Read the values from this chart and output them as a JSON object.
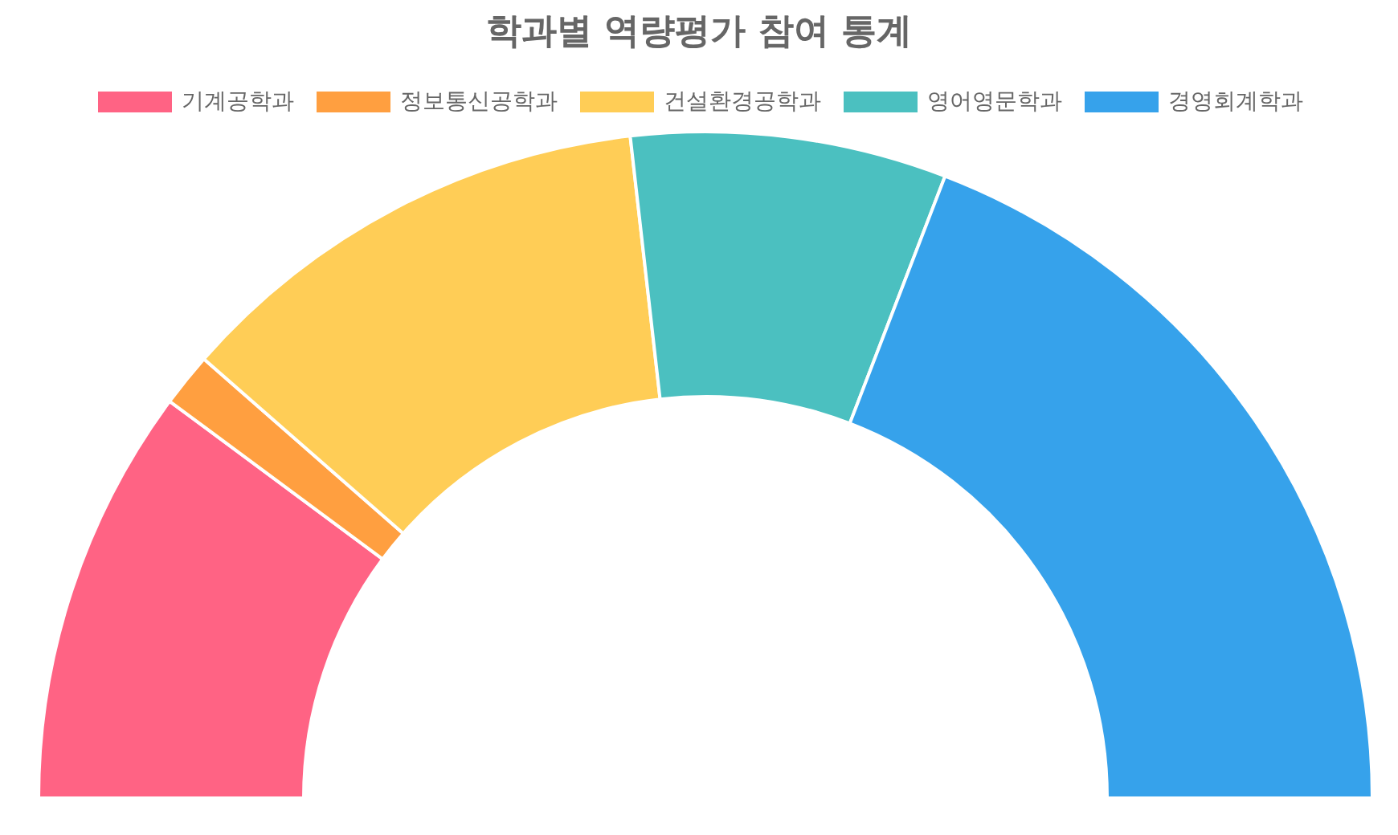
{
  "chart_data": {
    "type": "donut",
    "title": "학과별 역량평가 참여 통계",
    "categories": [
      "기계공학과",
      "정보통신공학과",
      "건설환경공학과",
      "영어영문학과",
      "경영회계학과"
    ],
    "values": [
      20.3,
      2.6,
      23.5,
      15.3,
      38.3
    ],
    "colors": [
      "#ff6384",
      "#ff9f40",
      "#ffcd56",
      "#4bc0c0",
      "#36a2eb"
    ],
    "legend": "top"
  }
}
